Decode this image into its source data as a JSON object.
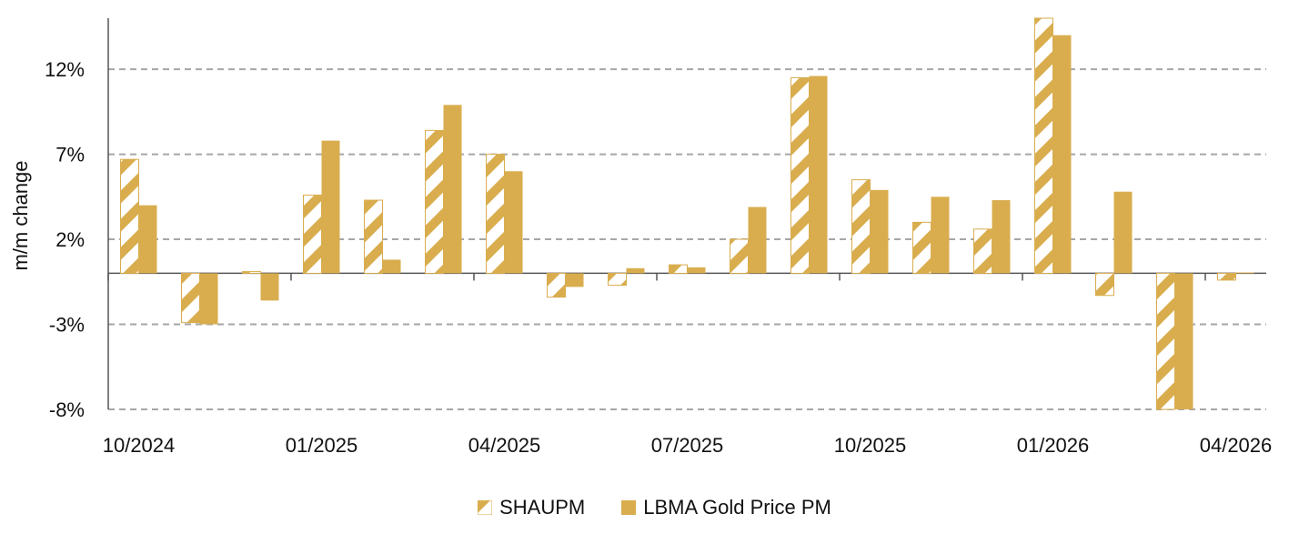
{
  "colors": {
    "gold": "#d9ad4e",
    "grid": "#a6a6a6",
    "axis": "#555555"
  },
  "legend": {
    "series_a_label": "SHAUPM",
    "series_b_label": "LBMA Gold Price PM"
  },
  "chart_data": {
    "type": "bar",
    "title": "",
    "xlabel": "",
    "ylabel": "m/m change",
    "ylim": [
      -8,
      15
    ],
    "yticks": [
      12,
      7,
      2,
      -3,
      -8
    ],
    "ytick_labels": [
      "12%",
      "7%",
      "2%",
      "-3%",
      "-8%"
    ],
    "grid": true,
    "legend_position": "bottom-center",
    "categories": [
      "10/2024",
      "11/2024",
      "12/2024",
      "01/2025",
      "02/2025",
      "03/2025",
      "04/2025",
      "05/2025",
      "06/2025",
      "07/2025",
      "08/2025",
      "09/2025",
      "10/2025",
      "11/2025",
      "12/2025",
      "01/2026",
      "02/2026",
      "03/2026",
      "04/2026"
    ],
    "xtick_labels": [
      "10/2024",
      "01/2025",
      "04/2025",
      "07/2025",
      "10/2025",
      "01/2026",
      "04/2026"
    ],
    "series": [
      {
        "name": "SHAUPM",
        "pattern": "hatched",
        "values": [
          6.7,
          -2.9,
          0.1,
          4.6,
          4.3,
          8.4,
          7.0,
          -1.4,
          -0.7,
          0.5,
          2.0,
          11.5,
          5.5,
          3.0,
          2.6,
          15.0,
          -1.3,
          -8.0,
          -0.4
        ]
      },
      {
        "name": "LBMA Gold Price PM",
        "pattern": "solid",
        "values": [
          4.0,
          -3.0,
          -1.6,
          7.8,
          0.8,
          9.9,
          6.0,
          -0.8,
          0.3,
          0.35,
          3.9,
          11.6,
          4.9,
          4.5,
          4.3,
          14.0,
          4.8,
          -8.0,
          0.05
        ]
      }
    ]
  }
}
